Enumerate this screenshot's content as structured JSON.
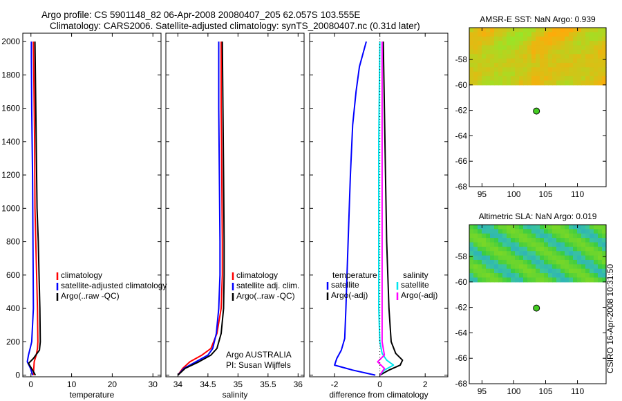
{
  "title_line1": "Argo profile: CS 5901148_82 06-Apr-2008 20080407_205 62.057S 103.555E",
  "title_line2": "Climatology: CARS2006. Satellite-adjusted climatology: synTS_20080407.nc (0.31d later)",
  "side_text": "CSIRO 16-Apr-2008 10:31:50",
  "colors": {
    "red": "#ff0000",
    "blue": "#0000ff",
    "black": "#000000",
    "cyan": "#00e5ee",
    "magenta": "#ff00ff",
    "marker": "#44cc22"
  },
  "chart_data": [
    {
      "type": "line",
      "id": "temperature",
      "xlabel": "temperature",
      "ylabel": "",
      "xlim": [
        -2,
        32
      ],
      "ylim": [
        2050,
        -10
      ],
      "xticks": [
        0,
        10,
        20,
        30
      ],
      "yticks": [
        0,
        200,
        400,
        600,
        800,
        1000,
        1200,
        1400,
        1600,
        1800,
        2000
      ],
      "legend": [
        "climatology",
        "satellite-adjusted climatology",
        "Argo(..raw -QC)"
      ],
      "legend_colors": [
        "red",
        "blue",
        "black"
      ],
      "series": [
        {
          "name": "climatology",
          "color": "red",
          "x": [
            0.6,
            0.7,
            0.8,
            1.3,
            1.6,
            1.7,
            1.6,
            1.4,
            1.2,
            1.0,
            0.9,
            0.7,
            0.6
          ],
          "y": [
            0,
            40,
            80,
            120,
            160,
            200,
            400,
            600,
            800,
            1000,
            1400,
            1800,
            2000
          ]
        },
        {
          "name": "satellite-adjusted climatology",
          "color": "blue",
          "x": [
            0.4,
            -0.1,
            -0.9,
            -0.6,
            -0.2,
            0.2,
            0.6,
            0.5,
            0.4,
            0.2,
            0.1,
            0.1
          ],
          "y": [
            0,
            40,
            80,
            120,
            160,
            200,
            400,
            800,
            1200,
            1600,
            1900,
            2000
          ]
        },
        {
          "name": "Argo(..raw -QC)",
          "color": "black",
          "x": [
            1.1,
            0.4,
            -0.6,
            0.6,
            2.1,
            2.3,
            2.2,
            2.0,
            1.8,
            1.5,
            1.3,
            1.1,
            1.0
          ],
          "y": [
            0,
            30,
            70,
            100,
            150,
            200,
            400,
            600,
            800,
            1000,
            1400,
            1800,
            2000
          ]
        }
      ]
    },
    {
      "type": "line",
      "id": "salinity",
      "xlabel": "salinity",
      "ylabel": "",
      "xlim": [
        33.8,
        36.1
      ],
      "ylim": [
        2050,
        -10
      ],
      "xticks": [
        34,
        34.5,
        35,
        35.5,
        36
      ],
      "xtick_labels": [
        "34",
        "34.5",
        "35",
        "35.5",
        "36"
      ],
      "legend": [
        "climatology",
        "satellite adj. clim.",
        "Argo(..raw -QC)"
      ],
      "legend_colors": [
        "red",
        "blue",
        "black"
      ],
      "annotation": [
        "Argo AUSTRALIA",
        "PI: Susan Wijffels"
      ],
      "series": [
        {
          "name": "climatology",
          "color": "red",
          "x": [
            34.0,
            34.08,
            34.2,
            34.4,
            34.55,
            34.65,
            34.72,
            34.74,
            34.74,
            34.73,
            34.72,
            34.72
          ],
          "y": [
            0,
            40,
            80,
            120,
            160,
            250,
            400,
            600,
            800,
            1200,
            1600,
            2000
          ]
        },
        {
          "name": "satellite adj. clim.",
          "color": "blue",
          "x": [
            34.0,
            34.1,
            34.3,
            34.5,
            34.58,
            34.64,
            34.68,
            34.7,
            34.7,
            34.69,
            34.68,
            34.68
          ],
          "y": [
            0,
            40,
            80,
            120,
            160,
            250,
            400,
            600,
            800,
            1200,
            1600,
            2000
          ]
        },
        {
          "name": "Argo(..raw -QC)",
          "color": "black",
          "x": [
            34.0,
            34.12,
            34.35,
            34.55,
            34.65,
            34.72,
            34.76,
            34.77,
            34.77,
            34.76,
            34.75,
            34.74
          ],
          "y": [
            0,
            40,
            80,
            120,
            160,
            250,
            400,
            600,
            800,
            1200,
            1600,
            2000
          ]
        }
      ]
    },
    {
      "type": "line",
      "id": "difference",
      "xlabel": "difference from climatology",
      "ylabel": "",
      "xlim": [
        -3.1,
        3.0
      ],
      "ylim": [
        2050,
        -10
      ],
      "xticks": [
        -2,
        0,
        2
      ],
      "xtick_labels": [
        "-2",
        "0",
        "2"
      ],
      "legend_titles": [
        "temperature",
        "salinity"
      ],
      "legend": [
        "satellite",
        "Argo(-adj)",
        "satellite",
        "Argo(-adj)"
      ],
      "legend_colors": [
        "blue",
        "black",
        "cyan",
        "magenta"
      ],
      "series": [
        {
          "name": "temperature satellite",
          "color": "blue",
          "x": [
            -0.2,
            -1.2,
            -2.0,
            -1.9,
            -1.7,
            -1.55,
            -1.5,
            -1.4,
            -1.3,
            -1.2,
            -1.05,
            -0.9,
            -0.7,
            -0.6
          ],
          "y": [
            0,
            30,
            60,
            100,
            150,
            220,
            400,
            800,
            1200,
            1500,
            1700,
            1850,
            1950,
            2000
          ]
        },
        {
          "name": "temperature Argo(-adj)",
          "color": "black",
          "x": [
            0.0,
            0.4,
            0.9,
            1.0,
            0.7,
            0.5,
            0.4,
            0.3,
            0.25,
            0.2,
            0.15
          ],
          "y": [
            0,
            30,
            60,
            90,
            130,
            200,
            400,
            800,
            1200,
            1600,
            2000
          ]
        },
        {
          "name": "salinity satellite",
          "color": "cyan",
          "x": [
            0.0,
            0.2,
            0.6,
            0.3,
            0.1,
            0.0,
            -0.05,
            -0.05,
            -0.05,
            0.0
          ],
          "y": [
            0,
            30,
            60,
            90,
            130,
            200,
            400,
            800,
            1400,
            2000
          ]
        },
        {
          "name": "salinity Argo(-adj)",
          "color": "magenta",
          "x": [
            0.0,
            0.2,
            -0.1,
            0.2,
            0.1,
            0.1,
            0.1,
            0.1,
            0.1
          ],
          "y": [
            0,
            40,
            80,
            120,
            200,
            400,
            800,
            1400,
            2000
          ]
        }
      ]
    },
    {
      "type": "heatmap",
      "id": "sst_map",
      "title": "AMSR-E SST: NaN Argo: 0.939",
      "xlim": [
        93,
        114.5
      ],
      "ylim": [
        -68,
        -55.5
      ],
      "xticks": [
        95,
        100,
        105,
        110
      ],
      "yticks": [
        -58,
        -60,
        -62,
        -64,
        -66,
        -68
      ],
      "data_extent_lat": [
        -60,
        -55.5
      ],
      "marker": {
        "lon": 103.555,
        "lat": -62.057
      }
    },
    {
      "type": "heatmap",
      "id": "sla_map",
      "title": "Altimetric SLA: NaN Argo: 0.019",
      "xlim": [
        93,
        114.5
      ],
      "ylim": [
        -68,
        -55.5
      ],
      "xticks": [
        95,
        100,
        105,
        110
      ],
      "yticks": [
        -58,
        -60,
        -62,
        -64,
        -66,
        -68
      ],
      "data_extent_lat": [
        -60,
        -55.5
      ],
      "marker": {
        "lon": 103.555,
        "lat": -62.057
      }
    }
  ]
}
